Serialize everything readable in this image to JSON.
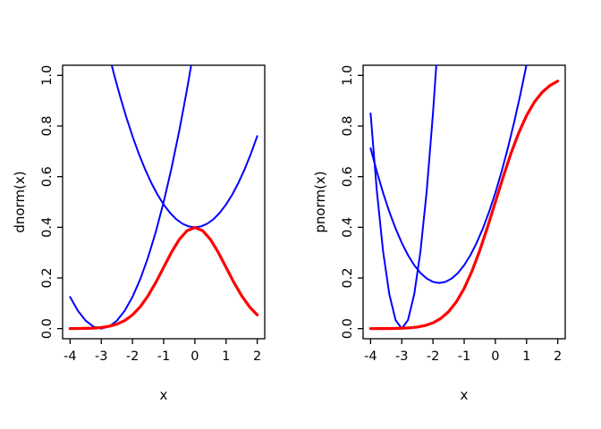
{
  "figure": {
    "background": "#ffffff",
    "axis_color": "#000000"
  },
  "chart_data": [
    {
      "type": "line",
      "title": "",
      "xlabel": "x",
      "ylabel": "dnorm(x)",
      "xlim": [
        -4,
        2
      ],
      "ylim": [
        0,
        1
      ],
      "x_ticks": [
        "-4",
        "-3",
        "-2",
        "-1",
        "0",
        "1",
        "2"
      ],
      "y_ticks": [
        "0.0",
        "0.2",
        "0.4",
        "0.6",
        "0.8",
        "1.0"
      ],
      "grid": false,
      "legend": "none",
      "series": [
        {
          "name": "blue-parabola-center-zero",
          "color": "#0000ff",
          "width": 2,
          "points": [
            [
              -2.8,
              1.1056
            ],
            [
              -2.6,
              1.0084
            ],
            [
              -2.4,
              0.9184
            ],
            [
              -2.2,
              0.8356
            ],
            [
              -2,
              0.76
            ],
            [
              -1.8,
              0.6916
            ],
            [
              -1.6,
              0.6304
            ],
            [
              -1.4,
              0.5764
            ],
            [
              -1.2,
              0.5296
            ],
            [
              -1,
              0.49
            ],
            [
              -0.8,
              0.4576
            ],
            [
              -0.6,
              0.4324
            ],
            [
              -0.4,
              0.4144
            ],
            [
              -0.2,
              0.4036
            ],
            [
              0,
              0.4
            ],
            [
              0.2,
              0.4036
            ],
            [
              0.4,
              0.4144
            ],
            [
              0.6,
              0.4324
            ],
            [
              0.8,
              0.4576
            ],
            [
              1,
              0.49
            ],
            [
              1.2,
              0.5296
            ],
            [
              1.4,
              0.5764
            ],
            [
              1.6,
              0.6304
            ],
            [
              1.8,
              0.6916
            ],
            [
              2,
              0.76
            ]
          ]
        },
        {
          "name": "blue-parabola-vertex-minus3",
          "color": "#0000ff",
          "width": 2,
          "points": [
            [
              -4,
              0.125
            ],
            [
              -3.75,
              0.0703
            ],
            [
              -3.5,
              0.0313
            ],
            [
              -3.25,
              0.0078
            ],
            [
              -3,
              0
            ],
            [
              -2.75,
              0.0078
            ],
            [
              -2.5,
              0.0313
            ],
            [
              -2.25,
              0.0703
            ],
            [
              -2,
              0.125
            ],
            [
              -1.75,
              0.1953
            ],
            [
              -1.5,
              0.2813
            ],
            [
              -1.25,
              0.3828
            ],
            [
              -1,
              0.5
            ],
            [
              -0.75,
              0.6328
            ],
            [
              -0.5,
              0.7813
            ],
            [
              -0.25,
              0.9453
            ],
            [
              0,
              1.125
            ],
            [
              0.1,
              1.2013
            ]
          ]
        },
        {
          "name": "dnorm-curve",
          "color": "#ff0000",
          "width": 3.2,
          "points": [
            [
              -4,
              0.0001
            ],
            [
              -3.75,
              0.0004
            ],
            [
              -3.5,
              0.0009
            ],
            [
              -3.25,
              0.002
            ],
            [
              -3,
              0.0044
            ],
            [
              -2.75,
              0.0091
            ],
            [
              -2.5,
              0.0175
            ],
            [
              -2.25,
              0.0317
            ],
            [
              -2,
              0.054
            ],
            [
              -1.75,
              0.0863
            ],
            [
              -1.5,
              0.1295
            ],
            [
              -1.25,
              0.1826
            ],
            [
              -1,
              0.242
            ],
            [
              -0.75,
              0.3011
            ],
            [
              -0.5,
              0.3521
            ],
            [
              -0.25,
              0.3867
            ],
            [
              0,
              0.3989
            ],
            [
              0.25,
              0.3867
            ],
            [
              0.5,
              0.3521
            ],
            [
              0.75,
              0.3011
            ],
            [
              1,
              0.242
            ],
            [
              1.25,
              0.1826
            ],
            [
              1.5,
              0.1295
            ],
            [
              1.75,
              0.0863
            ],
            [
              2,
              0.054
            ]
          ]
        }
      ]
    },
    {
      "type": "line",
      "title": "",
      "xlabel": "x",
      "ylabel": "pnorm(x)",
      "xlim": [
        -4,
        2
      ],
      "ylim": [
        0,
        1
      ],
      "x_ticks": [
        "-4",
        "-3",
        "-2",
        "-1",
        "0",
        "1",
        "2"
      ],
      "y_ticks": [
        "0.0",
        "0.2",
        "0.4",
        "0.6",
        "0.8",
        "1.0"
      ],
      "grid": false,
      "legend": "none",
      "series": [
        {
          "name": "blue-narrow-parabola-vertex-minus3",
          "color": "#0000ff",
          "width": 2,
          "points": [
            [
              -4,
              0.85
            ],
            [
              -3.8,
              0.544
            ],
            [
              -3.6,
              0.306
            ],
            [
              -3.4,
              0.136
            ],
            [
              -3.2,
              0.034
            ],
            [
              -3,
              0
            ],
            [
              -2.8,
              0.034
            ],
            [
              -2.6,
              0.136
            ],
            [
              -2.4,
              0.306
            ],
            [
              -2.2,
              0.544
            ],
            [
              -2,
              0.85
            ],
            [
              -1.9,
              1.0285
            ],
            [
              -1.8,
              1.224
            ]
          ]
        },
        {
          "name": "blue-broad-curve",
          "color": "#0000ff",
          "width": 2,
          "points": [
            [
              -4,
              0.7124
            ],
            [
              -3.8,
              0.62
            ],
            [
              -3.6,
              0.5364
            ],
            [
              -3.4,
              0.4616
            ],
            [
              -3.2,
              0.3956
            ],
            [
              -3,
              0.3384
            ],
            [
              -2.8,
              0.29
            ],
            [
              -2.6,
              0.2504
            ],
            [
              -2.4,
              0.2196
            ],
            [
              -2.2,
              0.1976
            ],
            [
              -2,
              0.1844
            ],
            [
              -1.8,
              0.18
            ],
            [
              -1.6,
              0.1844
            ],
            [
              -1.4,
              0.1976
            ],
            [
              -1.2,
              0.2196
            ],
            [
              -1,
              0.2504
            ],
            [
              -0.8,
              0.29
            ],
            [
              -0.6,
              0.3384
            ],
            [
              -0.4,
              0.3956
            ],
            [
              -0.2,
              0.4616
            ],
            [
              0,
              0.5364
            ],
            [
              0.2,
              0.62
            ],
            [
              0.4,
              0.7124
            ],
            [
              0.6,
              0.8136
            ],
            [
              0.8,
              0.9236
            ],
            [
              1,
              1.0424
            ],
            [
              1.1,
              1.1051
            ]
          ]
        },
        {
          "name": "pnorm-curve",
          "color": "#ff0000",
          "width": 3.2,
          "points": [
            [
              -4,
              0
            ],
            [
              -3.75,
              0.0001
            ],
            [
              -3.5,
              0.0002
            ],
            [
              -3.25,
              0.0006
            ],
            [
              -3,
              0.0014
            ],
            [
              -2.75,
              0.003
            ],
            [
              -2.5,
              0.0062
            ],
            [
              -2.25,
              0.0122
            ],
            [
              -2,
              0.0228
            ],
            [
              -1.75,
              0.0401
            ],
            [
              -1.5,
              0.0668
            ],
            [
              -1.25,
              0.1056
            ],
            [
              -1,
              0.1587
            ],
            [
              -0.75,
              0.2266
            ],
            [
              -0.5,
              0.3085
            ],
            [
              -0.25,
              0.4013
            ],
            [
              0,
              0.5
            ],
            [
              0.25,
              0.5987
            ],
            [
              0.5,
              0.6915
            ],
            [
              0.75,
              0.7734
            ],
            [
              1,
              0.8413
            ],
            [
              1.25,
              0.8944
            ],
            [
              1.5,
              0.9332
            ],
            [
              1.75,
              0.9599
            ],
            [
              2,
              0.9772
            ]
          ]
        }
      ]
    }
  ]
}
